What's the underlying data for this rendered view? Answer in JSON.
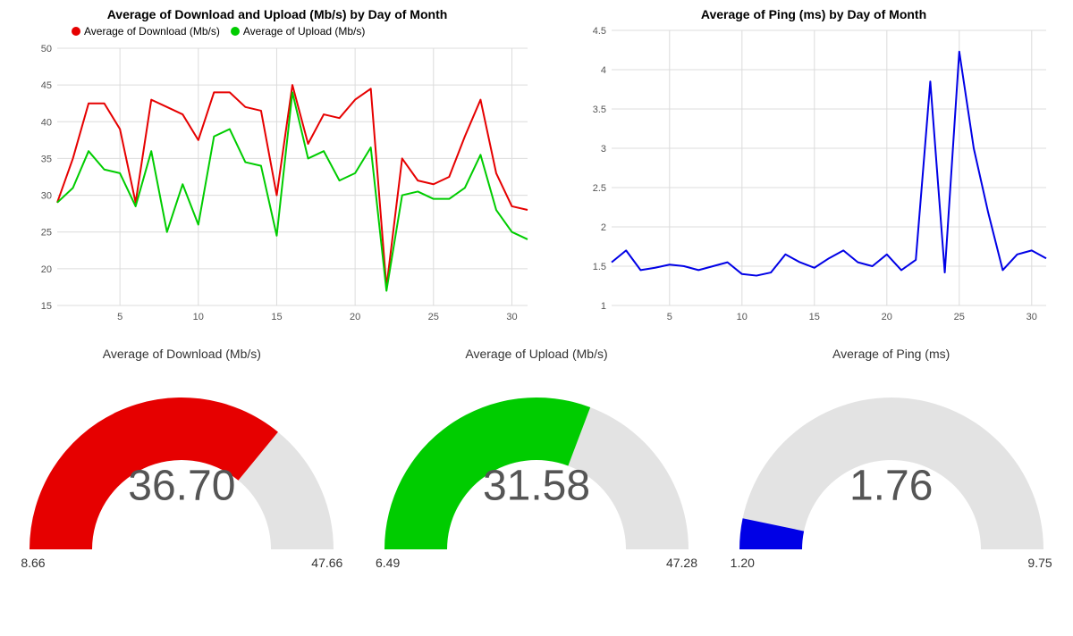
{
  "charts": {
    "download_upload": {
      "type": "line",
      "title": "Average of Download and Upload (Mb/s) by Day of Month",
      "legend": [
        {
          "label": "Average of Download (Mb/s)",
          "color": "#e60000"
        },
        {
          "label": "Average of Upload (Mb/s)",
          "color": "#00cc00"
        }
      ],
      "x_ticks": [
        5,
        10,
        15,
        20,
        25,
        30
      ],
      "y_ticks": [
        15,
        20,
        25,
        30,
        35,
        40,
        45,
        50
      ],
      "ylim": [
        15,
        50
      ],
      "xlim": [
        1,
        31
      ],
      "grid_color": "#dcdcdc",
      "axis_color": "#000000",
      "label_fontsize": 11,
      "line_width": 2,
      "series": {
        "download": {
          "color": "#e60000",
          "values": [
            29.0,
            35.0,
            42.5,
            42.5,
            39.0,
            29.0,
            43.0,
            42.0,
            41.0,
            37.5,
            44.0,
            44.0,
            42.0,
            41.5,
            30.0,
            45.0,
            37.0,
            41.0,
            40.5,
            43.0,
            44.5,
            17.5,
            35.0,
            32.0,
            31.5,
            32.5,
            38.0,
            43.0,
            33.0,
            28.5,
            28.0
          ]
        },
        "upload": {
          "color": "#00cc00",
          "values": [
            29.0,
            31.0,
            36.0,
            33.5,
            33.0,
            28.5,
            36.0,
            25.0,
            31.5,
            26.0,
            38.0,
            39.0,
            34.5,
            34.0,
            24.5,
            44.0,
            35.0,
            36.0,
            32.0,
            33.0,
            36.5,
            17.0,
            30.0,
            30.5,
            29.5,
            29.5,
            31.0,
            35.5,
            28.0,
            25.0,
            24.0
          ]
        }
      }
    },
    "ping": {
      "type": "line",
      "title": "Average of Ping (ms) by Day of Month",
      "x_ticks": [
        5,
        10,
        15,
        20,
        25,
        30
      ],
      "y_ticks": [
        1.0,
        1.5,
        2.0,
        2.5,
        3.0,
        3.5,
        4.0,
        4.5
      ],
      "ylim": [
        1.0,
        4.5
      ],
      "xlim": [
        1,
        31
      ],
      "grid_color": "#dcdcdc",
      "axis_color": "#000000",
      "label_fontsize": 11,
      "line_width": 2,
      "series": {
        "ping": {
          "color": "#0000e6",
          "values": [
            1.55,
            1.7,
            1.45,
            1.48,
            1.52,
            1.5,
            1.45,
            1.5,
            1.55,
            1.4,
            1.38,
            1.42,
            1.65,
            1.55,
            1.48,
            1.6,
            1.7,
            1.55,
            1.5,
            1.65,
            1.45,
            1.58,
            3.85,
            1.42,
            4.23,
            3.0,
            2.18,
            1.45,
            1.65,
            1.7,
            1.6
          ]
        }
      }
    }
  },
  "gauges": {
    "download": {
      "title": "Average of Download (Mb/s)",
      "value": "36.70",
      "value_num": 36.7,
      "min": 8.66,
      "max": 47.66,
      "min_label": "8.66",
      "max_label": "47.66",
      "fill_color": "#e60000",
      "track_color": "#e3e3e3",
      "value_color": "#666666",
      "value_fontsize": 48
    },
    "upload": {
      "title": "Average of Upload (Mb/s)",
      "value": "31.58",
      "value_num": 31.58,
      "min": 6.49,
      "max": 47.28,
      "min_label": "6.49",
      "max_label": "47.28",
      "fill_color": "#00cc00",
      "track_color": "#e3e3e3",
      "value_color": "#666666",
      "value_fontsize": 48
    },
    "ping": {
      "title": "Average of Ping (ms)",
      "value": "1.76",
      "value_num": 1.76,
      "min": 1.2,
      "max": 9.75,
      "min_label": "1.20",
      "max_label": "9.75",
      "fill_color": "#0000e6",
      "track_color": "#e3e3e3",
      "value_color": "#666666",
      "value_fontsize": 48
    }
  }
}
